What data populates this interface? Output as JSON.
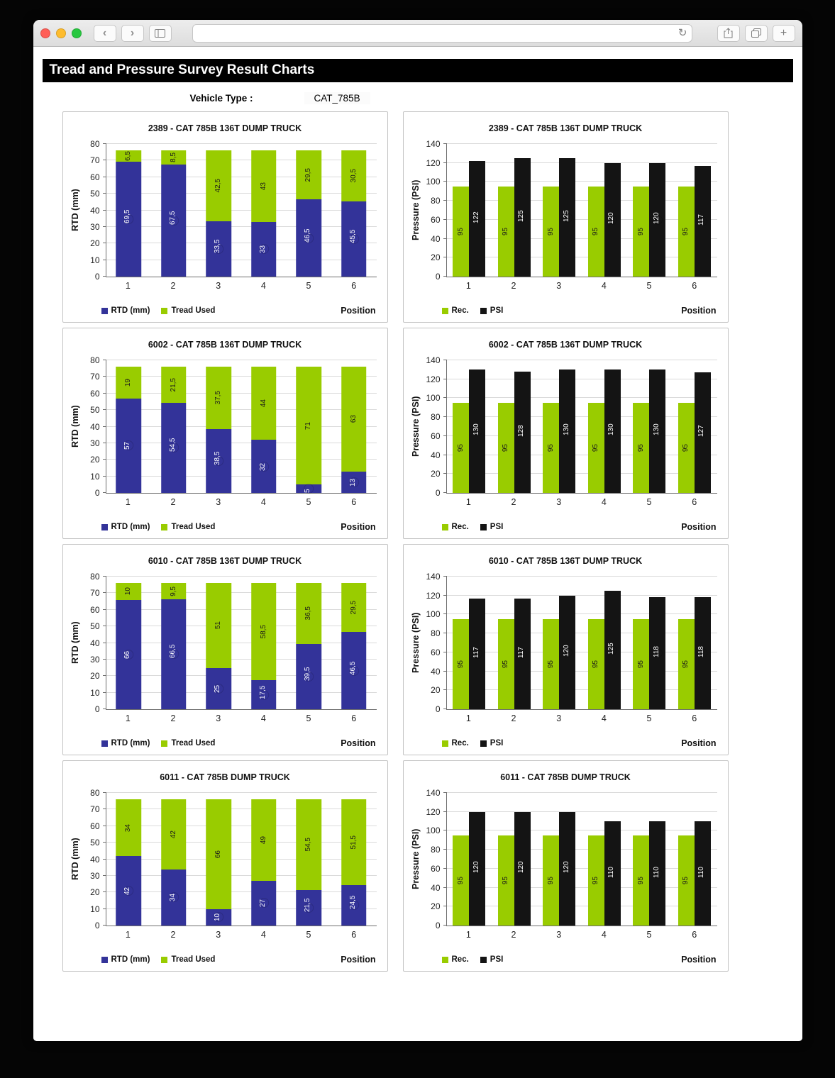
{
  "browser": {
    "url_value": "",
    "traffic_colors": {
      "close": "#ff5f57",
      "minimize": "#febc2e",
      "zoom": "#28c840"
    }
  },
  "page": {
    "header_title": "Tread and Pressure Survey Result Charts",
    "vehicle_label": "Vehicle Type :",
    "vehicle_value": "CAT_785B"
  },
  "colors": {
    "rtd_blue": "#333399",
    "tread_green": "#99cc00",
    "psi_black": "#141414"
  },
  "chart_data": [
    {
      "type": "bar",
      "variant": "stacked",
      "title": "2389 - CAT 785B 136T DUMP TRUCK",
      "categories": [
        "1",
        "2",
        "3",
        "4",
        "5",
        "6"
      ],
      "series": [
        {
          "name": "RTD (mm)",
          "color": "#333399",
          "values": [
            69.5,
            67.5,
            33.5,
            33,
            46.5,
            45.5
          ]
        },
        {
          "name": "Tread Used",
          "color": "#99cc00",
          "values": [
            6.5,
            8.5,
            42.5,
            43,
            29.5,
            30.5
          ]
        }
      ],
      "ylabel": "RTD (mm)",
      "xlabel": "Position",
      "ylim": [
        0,
        80
      ],
      "ytick": 10,
      "grid": true,
      "legend_position": "bottom-left"
    },
    {
      "type": "bar",
      "variant": "grouped",
      "title": "2389 - CAT 785B 136T DUMP TRUCK",
      "categories": [
        "1",
        "2",
        "3",
        "4",
        "5",
        "6"
      ],
      "series": [
        {
          "name": "Rec.",
          "color": "#99cc00",
          "values": [
            95,
            95,
            95,
            95,
            95,
            95
          ]
        },
        {
          "name": "PSI",
          "color": "#141414",
          "values": [
            122,
            125,
            125,
            120,
            120,
            117
          ]
        }
      ],
      "ylabel": "Pressure (PSI)",
      "xlabel": "Position",
      "ylim": [
        0,
        140
      ],
      "ytick": 20,
      "grid": true,
      "legend_position": "bottom-left"
    },
    {
      "type": "bar",
      "variant": "stacked",
      "title": "6002 - CAT 785B 136T DUMP TRUCK",
      "categories": [
        "1",
        "2",
        "3",
        "4",
        "5",
        "6"
      ],
      "series": [
        {
          "name": "RTD (mm)",
          "color": "#333399",
          "values": [
            57,
            54.5,
            38.5,
            32,
            5,
            13
          ]
        },
        {
          "name": "Tread Used",
          "color": "#99cc00",
          "values": [
            19,
            21.5,
            37.5,
            44,
            71,
            63
          ]
        }
      ],
      "ylabel": "RTD (mm)",
      "xlabel": "Position",
      "ylim": [
        0,
        80
      ],
      "ytick": 10,
      "grid": true,
      "legend_position": "bottom-left"
    },
    {
      "type": "bar",
      "variant": "grouped",
      "title": "6002 - CAT 785B 136T DUMP TRUCK",
      "categories": [
        "1",
        "2",
        "3",
        "4",
        "5",
        "6"
      ],
      "series": [
        {
          "name": "Rec.",
          "color": "#99cc00",
          "values": [
            95,
            95,
            95,
            95,
            95,
            95
          ]
        },
        {
          "name": "PSI",
          "color": "#141414",
          "values": [
            130,
            128,
            130,
            130,
            130,
            127
          ]
        }
      ],
      "ylabel": "Pressure (PSI)",
      "xlabel": "Position",
      "ylim": [
        0,
        140
      ],
      "ytick": 20,
      "grid": true,
      "legend_position": "bottom-left"
    },
    {
      "type": "bar",
      "variant": "stacked",
      "title": "6010 - CAT 785B 136T DUMP TRUCK",
      "categories": [
        "1",
        "2",
        "3",
        "4",
        "5",
        "6"
      ],
      "series": [
        {
          "name": "RTD (mm)",
          "color": "#333399",
          "values": [
            66,
            66.5,
            25,
            17.5,
            39.5,
            46.5
          ]
        },
        {
          "name": "Tread Used",
          "color": "#99cc00",
          "values": [
            10,
            9.5,
            51,
            58.5,
            36.5,
            29.5
          ]
        }
      ],
      "ylabel": "RTD (mm)",
      "xlabel": "Position",
      "ylim": [
        0,
        80
      ],
      "ytick": 10,
      "grid": true,
      "legend_position": "bottom-left"
    },
    {
      "type": "bar",
      "variant": "grouped",
      "title": "6010 - CAT 785B 136T DUMP TRUCK",
      "categories": [
        "1",
        "2",
        "3",
        "4",
        "5",
        "6"
      ],
      "series": [
        {
          "name": "Rec.",
          "color": "#99cc00",
          "values": [
            95,
            95,
            95,
            95,
            95,
            95
          ]
        },
        {
          "name": "PSI",
          "color": "#141414",
          "values": [
            117,
            117,
            120,
            125,
            118,
            118
          ]
        }
      ],
      "ylabel": "Pressure (PSI)",
      "xlabel": "Position",
      "ylim": [
        0,
        140
      ],
      "ytick": 20,
      "grid": true,
      "legend_position": "bottom-left"
    },
    {
      "type": "bar",
      "variant": "stacked",
      "title": "6011 - CAT 785B DUMP TRUCK",
      "categories": [
        "1",
        "2",
        "3",
        "4",
        "5",
        "6"
      ],
      "series": [
        {
          "name": "RTD (mm)",
          "color": "#333399",
          "values": [
            42,
            34,
            10,
            27,
            21.5,
            24.5
          ]
        },
        {
          "name": "Tread Used",
          "color": "#99cc00",
          "values": [
            34,
            42,
            66,
            49,
            54.5,
            51.5
          ]
        }
      ],
      "ylabel": "RTD (mm)",
      "xlabel": "Position",
      "ylim": [
        0,
        80
      ],
      "ytick": 10,
      "grid": true,
      "legend_position": "bottom-left"
    },
    {
      "type": "bar",
      "variant": "grouped",
      "title": "6011 - CAT 785B DUMP TRUCK",
      "categories": [
        "1",
        "2",
        "3",
        "4",
        "5",
        "6"
      ],
      "series": [
        {
          "name": "Rec.",
          "color": "#99cc00",
          "values": [
            95,
            95,
            95,
            95,
            95,
            95
          ]
        },
        {
          "name": "PSI",
          "color": "#141414",
          "values": [
            120,
            120,
            120,
            110,
            110,
            110
          ]
        }
      ],
      "ylabel": "Pressure (PSI)",
      "xlabel": "Position",
      "ylim": [
        0,
        140
      ],
      "ytick": 20,
      "grid": true,
      "legend_position": "bottom-left"
    }
  ]
}
